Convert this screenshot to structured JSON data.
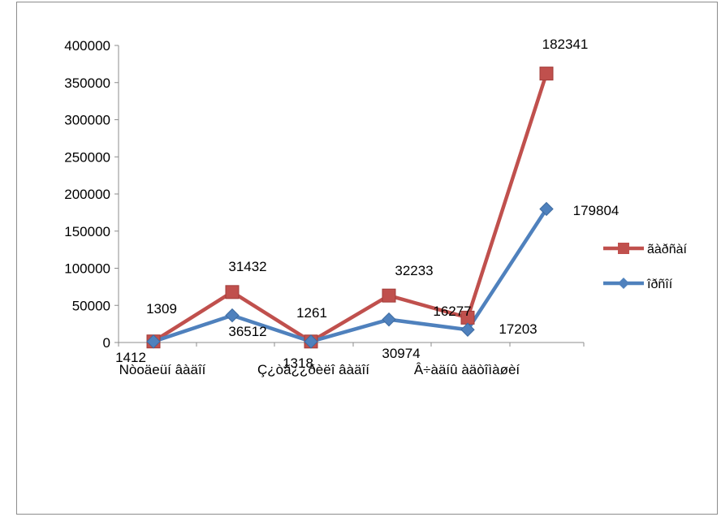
{
  "chart_data": {
    "type": "line",
    "categories": [
      "Nòoäeüí âàäîí",
      "",
      "Ç¿òã¿¿ðèëî âàäîí",
      "",
      "Â÷àäíû àäòîìàøèí",
      ""
    ],
    "series": [
      {
        "name": "ãàðñàí",
        "color": "#c0504d",
        "marker": "square",
        "values": [
          1412,
          67944,
          1318,
          63207,
          33480,
          362145
        ],
        "labels": [
          "1412",
          "31432",
          "1318",
          "32233",
          "16277",
          "182341"
        ]
      },
      {
        "name": "îðñîí",
        "color": "#4f81bd",
        "marker": "diamond",
        "values": [
          1309,
          36512,
          1261,
          30974,
          17203,
          179804
        ],
        "labels": [
          "1309",
          "36512",
          "1261",
          "30974",
          "17203",
          "179804"
        ]
      }
    ],
    "yticks": [
      "0",
      "50000",
      "100000",
      "150000",
      "200000",
      "250000",
      "300000",
      "350000",
      "400000"
    ],
    "ylim": [
      0,
      400000
    ],
    "title": "",
    "xlabel": "",
    "ylabel": "",
    "grid": false,
    "legend_position": "right"
  }
}
